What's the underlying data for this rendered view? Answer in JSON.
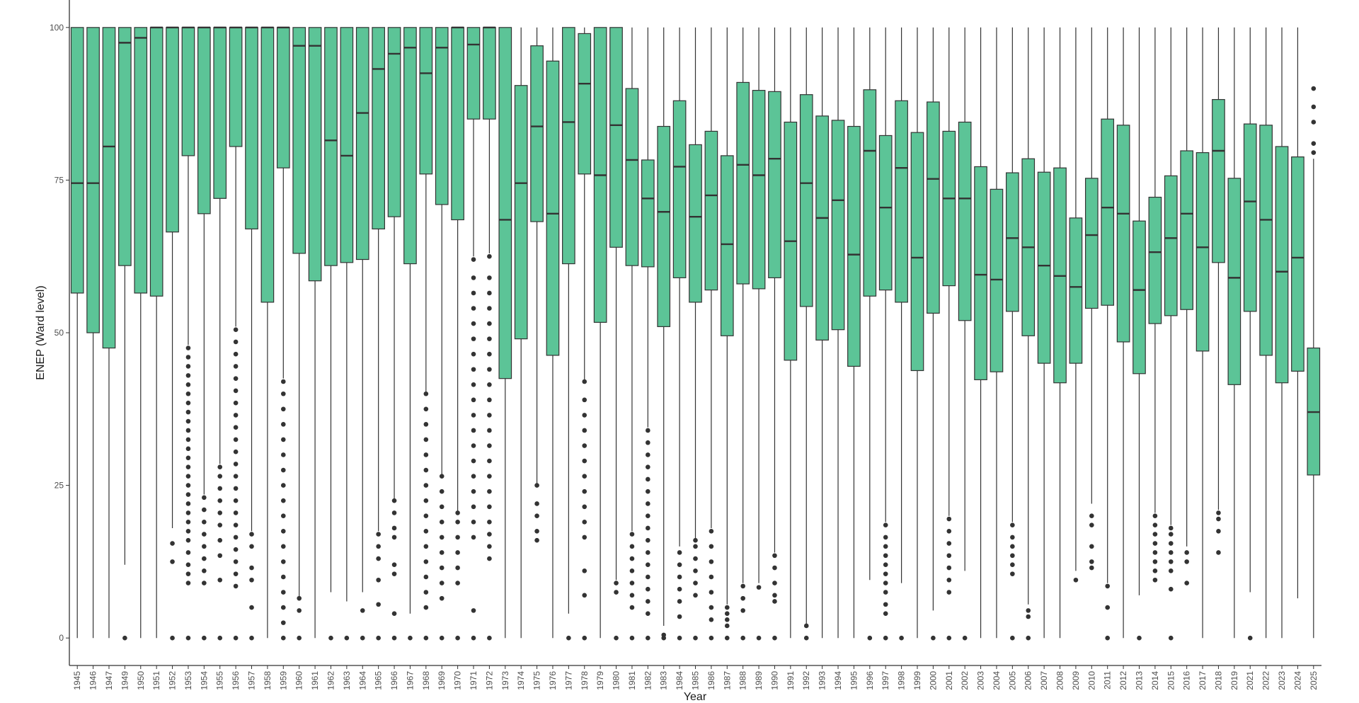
{
  "chart_data": {
    "type": "boxplot",
    "title": "",
    "xlabel": "Year",
    "ylabel": "ENEP (Ward level)",
    "ylim": [
      -4.5,
      104.5
    ],
    "yticks": [
      0,
      25,
      50,
      75,
      100
    ],
    "box_color": "#5CC497",
    "line_color": "#333333",
    "grid": false,
    "legend": "none",
    "boxes": [
      {
        "year": "1945",
        "min": 0,
        "q1": 56.5,
        "median": 74.5,
        "q3": 100,
        "max": 100,
        "outliers": []
      },
      {
        "year": "1946",
        "min": 0,
        "q1": 50,
        "median": 74.5,
        "q3": 100,
        "max": 100,
        "outliers": []
      },
      {
        "year": "1947",
        "min": 0,
        "q1": 47.5,
        "median": 80.5,
        "q3": 100,
        "max": 100,
        "outliers": []
      },
      {
        "year": "1949",
        "min": 12,
        "q1": 61,
        "median": 97.5,
        "q3": 100,
        "max": 100,
        "outliers": [
          0
        ]
      },
      {
        "year": "1950",
        "min": 0,
        "q1": 56.5,
        "median": 98.3,
        "q3": 100,
        "max": 100,
        "outliers": []
      },
      {
        "year": "1951",
        "min": 0,
        "q1": 56,
        "median": 100,
        "q3": 100,
        "max": 100,
        "outliers": []
      },
      {
        "year": "1952",
        "min": 18,
        "q1": 66.5,
        "median": 100,
        "q3": 100,
        "max": 100,
        "outliers": [
          0,
          12.5,
          15.5
        ]
      },
      {
        "year": "1953",
        "min": 48,
        "q1": 79,
        "median": 100,
        "q3": 100,
        "max": 100,
        "outliers": [
          0,
          9,
          10.5,
          12,
          14,
          16,
          17.5,
          19,
          20.5,
          22,
          23.5,
          25,
          26.5,
          28,
          29.5,
          31,
          32.5,
          34,
          35.5,
          37,
          38.5,
          40,
          41.5,
          43,
          44.5,
          46,
          47.5
        ]
      },
      {
        "year": "1954",
        "min": 23.5,
        "q1": 69.5,
        "median": 100,
        "q3": 100,
        "max": 100,
        "outliers": [
          0,
          9,
          11,
          13,
          15,
          17,
          19,
          21,
          23
        ]
      },
      {
        "year": "1955",
        "min": 28.5,
        "q1": 72,
        "median": 100,
        "q3": 100,
        "max": 100,
        "outliers": [
          0,
          9.5,
          13.5,
          16,
          18.5,
          20.5,
          22.5,
          24.5,
          26.5,
          28
        ]
      },
      {
        "year": "1956",
        "min": 51,
        "q1": 80.5,
        "median": 100,
        "q3": 100,
        "max": 100,
        "outliers": [
          0,
          8.5,
          10.5,
          12.5,
          14.5,
          16.5,
          18.5,
          20.5,
          22.5,
          24.5,
          26.5,
          28.5,
          30.5,
          32.5,
          34.5,
          36.5,
          38.5,
          40.5,
          42.5,
          44.5,
          46.5,
          48.5,
          50.5
        ]
      },
      {
        "year": "1957",
        "min": 17.5,
        "q1": 67,
        "median": 100,
        "q3": 100,
        "max": 100,
        "outliers": [
          0,
          5,
          9.5,
          11.5,
          15,
          17
        ]
      },
      {
        "year": "1958",
        "min": 0,
        "q1": 55,
        "median": 100,
        "q3": 100,
        "max": 100,
        "outliers": []
      },
      {
        "year": "1959",
        "min": 42.5,
        "q1": 77,
        "median": 100,
        "q3": 100,
        "max": 100,
        "outliers": [
          0,
          2.5,
          5,
          7.5,
          10,
          12.5,
          15,
          17.5,
          20,
          22.5,
          25,
          27.5,
          30,
          32.5,
          35,
          37.5,
          40,
          42
        ]
      },
      {
        "year": "1960",
        "min": 6.5,
        "q1": 63,
        "median": 97,
        "q3": 100,
        "max": 100,
        "outliers": [
          0,
          4.5,
          6.5
        ]
      },
      {
        "year": "1961",
        "min": 0,
        "q1": 58.5,
        "median": 97,
        "q3": 100,
        "max": 100,
        "outliers": []
      },
      {
        "year": "1962",
        "min": 7.5,
        "q1": 61,
        "median": 81.5,
        "q3": 100,
        "max": 100,
        "outliers": [
          0
        ]
      },
      {
        "year": "1963",
        "min": 6,
        "q1": 61.5,
        "median": 79,
        "q3": 100,
        "max": 100,
        "outliers": [
          0
        ]
      },
      {
        "year": "1964",
        "min": 7.5,
        "q1": 62,
        "median": 86,
        "q3": 100,
        "max": 100,
        "outliers": [
          0,
          4.5
        ]
      },
      {
        "year": "1965",
        "min": 17.5,
        "q1": 67,
        "median": 93.2,
        "q3": 100,
        "max": 100,
        "outliers": [
          0,
          5.5,
          9.5,
          13,
          15,
          17
        ]
      },
      {
        "year": "1966",
        "min": 22.5,
        "q1": 69,
        "median": 95.7,
        "q3": 100,
        "max": 100,
        "outliers": [
          0,
          4,
          10.5,
          12,
          16.5,
          18,
          20.5,
          22.5
        ]
      },
      {
        "year": "1967",
        "min": 4,
        "q1": 61.3,
        "median": 96.7,
        "q3": 100,
        "max": 100,
        "outliers": [
          0
        ]
      },
      {
        "year": "1968",
        "min": 40,
        "q1": 76,
        "median": 92.5,
        "q3": 100,
        "max": 100,
        "outliers": [
          0,
          5,
          7.5,
          10,
          12.5,
          15,
          17.5,
          20,
          22.5,
          25,
          27.5,
          30,
          32.5,
          35,
          37.5,
          40
        ]
      },
      {
        "year": "1969",
        "min": 26.5,
        "q1": 71,
        "median": 96.7,
        "q3": 100,
        "max": 100,
        "outliers": [
          0,
          6.5,
          9,
          11.5,
          14,
          16.5,
          19,
          21.5,
          24,
          26.5
        ]
      },
      {
        "year": "1970",
        "min": 20.5,
        "q1": 68.5,
        "median": 100,
        "q3": 100,
        "max": 100,
        "outliers": [
          0,
          9,
          11.5,
          14,
          16.5,
          19,
          20.5
        ]
      },
      {
        "year": "1971",
        "min": 62.5,
        "q1": 85,
        "median": 97.2,
        "q3": 100,
        "max": 100,
        "outliers": [
          0,
          4.5,
          16.5,
          19,
          21.5,
          24,
          26.5,
          29,
          31.5,
          34,
          36.5,
          39,
          41.5,
          44,
          46.5,
          49,
          51.5,
          54,
          56.5,
          59,
          62
        ]
      },
      {
        "year": "1972",
        "min": 63,
        "q1": 85,
        "median": 100,
        "q3": 100,
        "max": 100,
        "outliers": [
          0,
          13,
          15,
          17,
          19,
          21.5,
          24,
          26.5,
          29,
          31.5,
          34,
          36.5,
          39,
          41.5,
          44,
          46.5,
          49,
          51.5,
          54,
          56.5,
          59,
          62.5
        ]
      },
      {
        "year": "1973",
        "min": 0,
        "q1": 42.5,
        "median": 68.5,
        "q3": 100,
        "max": 100,
        "outliers": []
      },
      {
        "year": "1974",
        "min": 0,
        "q1": 49,
        "median": 74.5,
        "q3": 90.5,
        "max": 100,
        "outliers": []
      },
      {
        "year": "1975",
        "min": 25,
        "q1": 68.2,
        "median": 83.8,
        "q3": 97,
        "max": 100,
        "outliers": [
          16,
          17.5,
          20,
          22,
          25
        ]
      },
      {
        "year": "1976",
        "min": 0,
        "q1": 46.3,
        "median": 69.5,
        "q3": 94.5,
        "max": 100,
        "outliers": []
      },
      {
        "year": "1977",
        "min": 4,
        "q1": 61.3,
        "median": 84.5,
        "q3": 100,
        "max": 100,
        "outliers": [
          0
        ]
      },
      {
        "year": "1978",
        "min": 42,
        "q1": 76,
        "median": 90.8,
        "q3": 99,
        "max": 100,
        "outliers": [
          0,
          7,
          11,
          16.5,
          19,
          21.5,
          24,
          26.5,
          29,
          31.5,
          34,
          36.5,
          39,
          42
        ]
      },
      {
        "year": "1979",
        "min": 0,
        "q1": 51.7,
        "median": 75.8,
        "q3": 100,
        "max": 100,
        "outliers": []
      },
      {
        "year": "1980",
        "min": 9.5,
        "q1": 64,
        "median": 84,
        "q3": 100,
        "max": 100,
        "outliers": [
          0,
          7.5,
          9
        ]
      },
      {
        "year": "1981",
        "min": 17.5,
        "q1": 61,
        "median": 78.3,
        "q3": 90,
        "max": 100,
        "outliers": [
          0,
          5,
          7,
          9,
          11,
          13,
          15,
          17
        ]
      },
      {
        "year": "1982",
        "min": 34.5,
        "q1": 60.8,
        "median": 72,
        "q3": 78.3,
        "max": 100,
        "outliers": [
          0,
          4,
          6,
          8,
          10,
          12,
          14,
          16,
          18,
          20,
          22,
          24,
          26,
          28,
          30,
          32,
          34
        ]
      },
      {
        "year": "1983",
        "min": 2,
        "q1": 51,
        "median": 69.8,
        "q3": 83.8,
        "max": 100,
        "outliers": [
          0,
          0.5
        ]
      },
      {
        "year": "1984",
        "min": 15,
        "q1": 59,
        "median": 77.2,
        "q3": 88,
        "max": 100,
        "outliers": [
          0,
          3.5,
          6,
          8,
          10,
          12,
          14
        ]
      },
      {
        "year": "1985",
        "min": 16,
        "q1": 55,
        "median": 69,
        "q3": 80.8,
        "max": 100,
        "outliers": [
          0,
          7,
          9,
          11,
          13,
          15,
          16
        ]
      },
      {
        "year": "1986",
        "min": 18,
        "q1": 57,
        "median": 72.5,
        "q3": 83,
        "max": 100,
        "outliers": [
          0,
          3,
          5,
          7.5,
          10,
          12.5,
          15,
          17.5
        ]
      },
      {
        "year": "1987",
        "min": 5.5,
        "q1": 49.5,
        "median": 64.5,
        "q3": 79,
        "max": 100,
        "outliers": [
          0,
          2,
          3,
          4,
          5
        ]
      },
      {
        "year": "1988",
        "min": 9,
        "q1": 58,
        "median": 77.5,
        "q3": 91,
        "max": 100,
        "outliers": [
          0,
          4.5,
          6.5,
          8.5
        ]
      },
      {
        "year": "1989",
        "min": 9,
        "q1": 57.2,
        "median": 75.8,
        "q3": 89.7,
        "max": 100,
        "outliers": [
          0,
          8.3
        ]
      },
      {
        "year": "1990",
        "min": 14,
        "q1": 59,
        "median": 78.5,
        "q3": 89.5,
        "max": 100,
        "outliers": [
          0,
          6,
          7,
          9,
          11.5,
          13.5
        ]
      },
      {
        "year": "1991",
        "min": 0,
        "q1": 45.5,
        "median": 65,
        "q3": 84.5,
        "max": 100,
        "outliers": []
      },
      {
        "year": "1992",
        "min": 2,
        "q1": 54.3,
        "median": 74.5,
        "q3": 89,
        "max": 100,
        "outliers": [
          0,
          2
        ]
      },
      {
        "year": "1993",
        "min": 0,
        "q1": 48.8,
        "median": 68.8,
        "q3": 85.5,
        "max": 100,
        "outliers": []
      },
      {
        "year": "1994",
        "min": 0,
        "q1": 50.5,
        "median": 71.7,
        "q3": 84.8,
        "max": 100,
        "outliers": []
      },
      {
        "year": "1995",
        "min": 0,
        "q1": 44.5,
        "median": 62.8,
        "q3": 83.8,
        "max": 100,
        "outliers": []
      },
      {
        "year": "1996",
        "min": 9.5,
        "q1": 56,
        "median": 79.8,
        "q3": 89.8,
        "max": 100,
        "outliers": [
          0
        ]
      },
      {
        "year": "1997",
        "min": 19,
        "q1": 57,
        "median": 70.5,
        "q3": 82.3,
        "max": 100,
        "outliers": [
          0,
          4,
          5.5,
          7.5,
          9,
          10.5,
          12,
          13.5,
          15,
          16.5,
          18.5
        ]
      },
      {
        "year": "1998",
        "min": 9,
        "q1": 55,
        "median": 77,
        "q3": 88,
        "max": 100,
        "outliers": [
          0
        ]
      },
      {
        "year": "1999",
        "min": 0,
        "q1": 43.8,
        "median": 62.3,
        "q3": 82.8,
        "max": 100,
        "outliers": []
      },
      {
        "year": "2000",
        "min": 4.5,
        "q1": 53.2,
        "median": 75.2,
        "q3": 87.8,
        "max": 100,
        "outliers": [
          0
        ]
      },
      {
        "year": "2001",
        "min": 20,
        "q1": 57.7,
        "median": 72,
        "q3": 83,
        "max": 100,
        "outliers": [
          0,
          7.5,
          9.5,
          11.5,
          13.5,
          15.5,
          17.5,
          19.5
        ]
      },
      {
        "year": "2002",
        "min": 11,
        "q1": 52,
        "median": 72,
        "q3": 84.5,
        "max": 100,
        "outliers": [
          0
        ]
      },
      {
        "year": "2003",
        "min": 0,
        "q1": 42.3,
        "median": 59.5,
        "q3": 77.2,
        "max": 100,
        "outliers": []
      },
      {
        "year": "2004",
        "min": 0,
        "q1": 43.6,
        "median": 58.7,
        "q3": 73.5,
        "max": 100,
        "outliers": []
      },
      {
        "year": "2005",
        "min": 19,
        "q1": 53.5,
        "median": 65.5,
        "q3": 76.2,
        "max": 100,
        "outliers": [
          0,
          10.5,
          12,
          13.5,
          15,
          16.5,
          18.5
        ]
      },
      {
        "year": "2006",
        "min": 5.5,
        "q1": 49.5,
        "median": 64,
        "q3": 78.5,
        "max": 100,
        "outliers": [
          0,
          3.5,
          4.5
        ]
      },
      {
        "year": "2007",
        "min": 0,
        "q1": 45,
        "median": 61,
        "q3": 76.3,
        "max": 100,
        "outliers": []
      },
      {
        "year": "2008",
        "min": 0,
        "q1": 41.8,
        "median": 59.3,
        "q3": 77,
        "max": 100,
        "outliers": []
      },
      {
        "year": "2009",
        "min": 11,
        "q1": 45,
        "median": 57.5,
        "q3": 68.8,
        "max": 100,
        "outliers": [
          9.5
        ]
      },
      {
        "year": "2010",
        "min": 22,
        "q1": 54,
        "median": 66,
        "q3": 75.3,
        "max": 100,
        "outliers": [
          11.5,
          12.5,
          15,
          18.5,
          20
        ]
      },
      {
        "year": "2011",
        "min": 9,
        "q1": 54.5,
        "median": 70.5,
        "q3": 85,
        "max": 100,
        "outliers": [
          0,
          5,
          8.5
        ]
      },
      {
        "year": "2012",
        "min": 0,
        "q1": 48.5,
        "median": 69.5,
        "q3": 84,
        "max": 100,
        "outliers": []
      },
      {
        "year": "2013",
        "min": 7,
        "q1": 43.3,
        "median": 57,
        "q3": 68.3,
        "max": 100,
        "outliers": [
          0
        ]
      },
      {
        "year": "2014",
        "min": 20.5,
        "q1": 51.5,
        "median": 63.2,
        "q3": 72.2,
        "max": 100,
        "outliers": [
          9.5,
          11,
          12.5,
          14,
          15.5,
          17,
          18.5,
          20
        ]
      },
      {
        "year": "2015",
        "min": 18.5,
        "q1": 52.8,
        "median": 65.5,
        "q3": 75.7,
        "max": 100,
        "outliers": [
          0,
          8,
          11,
          12.5,
          14,
          15.5,
          17,
          18
        ]
      },
      {
        "year": "2016",
        "min": 15,
        "q1": 53.8,
        "median": 69.5,
        "q3": 79.8,
        "max": 100,
        "outliers": [
          9,
          12.5,
          14
        ]
      },
      {
        "year": "2017",
        "min": 0,
        "q1": 47,
        "median": 64,
        "q3": 79.5,
        "max": 100,
        "outliers": []
      },
      {
        "year": "2018",
        "min": 21,
        "q1": 61.5,
        "median": 79.8,
        "q3": 88.2,
        "max": 100,
        "outliers": [
          14,
          17.5,
          19.5,
          20.5
        ]
      },
      {
        "year": "2019",
        "min": 0,
        "q1": 41.5,
        "median": 59,
        "q3": 75.3,
        "max": 100,
        "outliers": []
      },
      {
        "year": "2021",
        "min": 7.5,
        "q1": 53.5,
        "median": 71.5,
        "q3": 84.2,
        "max": 100,
        "outliers": [
          0
        ]
      },
      {
        "year": "2022",
        "min": 0,
        "q1": 46.3,
        "median": 68.5,
        "q3": 84,
        "max": 100,
        "outliers": []
      },
      {
        "year": "2023",
        "min": 0,
        "q1": 41.8,
        "median": 60,
        "q3": 80.5,
        "max": 100,
        "outliers": []
      },
      {
        "year": "2024",
        "min": 6.5,
        "q1": 43.7,
        "median": 62.3,
        "q3": 78.8,
        "max": 100,
        "outliers": []
      },
      {
        "year": "2025",
        "min": 0,
        "q1": 26.7,
        "median": 37,
        "q3": 47.5,
        "max": 78.5,
        "outliers": [
          79.5,
          81,
          84.5,
          87,
          90
        ]
      }
    ]
  }
}
